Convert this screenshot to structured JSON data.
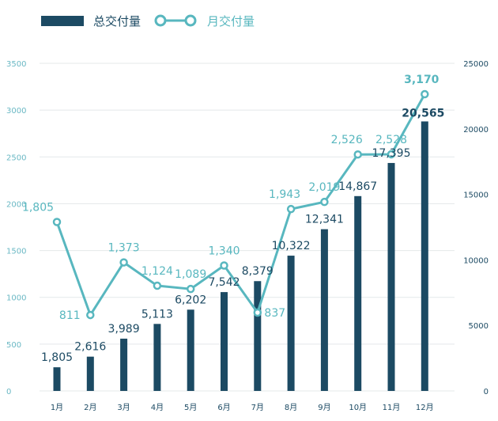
{
  "legend": {
    "bar_label": "总交付量",
    "line_label": "月交付量"
  },
  "colors": {
    "bar": "#1c4a63",
    "line": "#58b7bf",
    "grid": "#e4e8ea",
    "left_axis_text": "#6ab8c4",
    "right_axis_text": "#1c4a63",
    "x_axis_text": "#1c4a63"
  },
  "chart_data": {
    "type": "bar",
    "categories": [
      "1月",
      "2月",
      "3月",
      "4月",
      "5月",
      "6月",
      "7月",
      "8月",
      "9月",
      "10月",
      "11月",
      "12月"
    ],
    "series": [
      {
        "name": "总交付量",
        "type": "bar",
        "axis": "right",
        "values": [
          1805,
          2616,
          3989,
          5113,
          6202,
          7542,
          8379,
          10322,
          12341,
          14867,
          17395,
          20565
        ],
        "labels": [
          "1,805",
          "2,616",
          "3,989",
          "5,113",
          "6,202",
          "7,542",
          "8,379",
          "10,322",
          "12,341",
          "14,867",
          "17,395",
          "20,565"
        ]
      },
      {
        "name": "月交付量",
        "type": "line",
        "axis": "left",
        "values": [
          1805,
          811,
          1373,
          1124,
          1089,
          1340,
          837,
          1943,
          2019,
          2526,
          2528,
          3170
        ],
        "labels": [
          "1,805",
          "811",
          "1,373",
          "1,124",
          "1,089",
          "1,340",
          "837",
          "1,943",
          "2,019",
          "2,526",
          "2,528",
          "3,170"
        ]
      }
    ],
    "left_axis": {
      "ylim": [
        0,
        3500
      ],
      "ticks": [
        "0",
        "500",
        "1000",
        "1500",
        "2000",
        "2500",
        "3000",
        "3500"
      ]
    },
    "right_axis": {
      "ylim": [
        0,
        25000
      ],
      "ticks": [
        "0",
        "5000",
        "10000",
        "15000",
        "20000",
        "25000"
      ]
    },
    "grid": true,
    "legend_position": "top-left"
  }
}
